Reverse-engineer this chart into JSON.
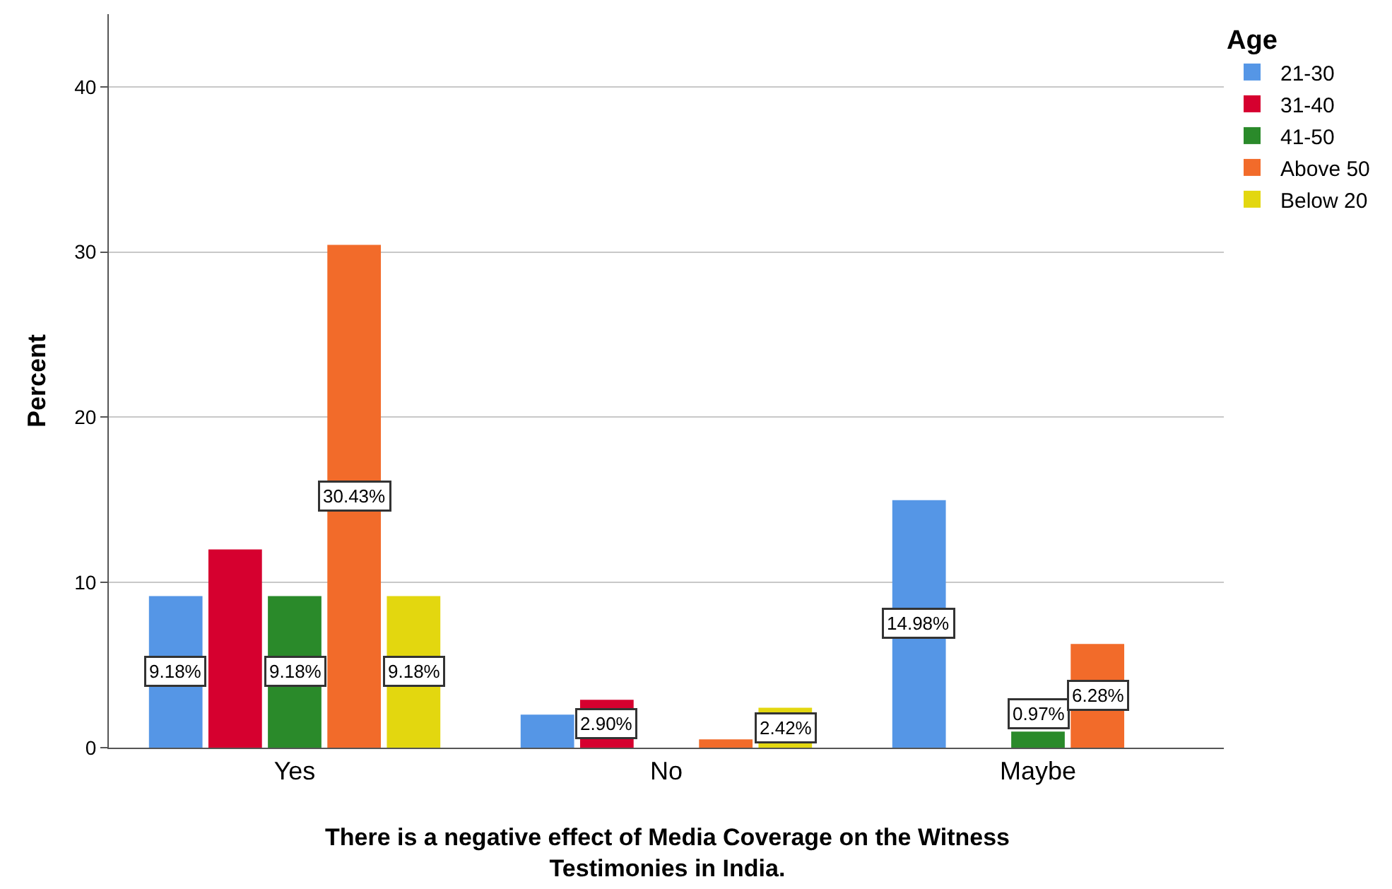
{
  "chart_data": {
    "type": "bar",
    "xlabel": "There is a negative effect of Media Coverage on the Witness Testimonies in India.",
    "ylabel": "Percent",
    "legend_title": "Age",
    "categories": [
      "Yes",
      "No",
      "Maybe"
    ],
    "series": [
      {
        "name": "21-30",
        "color": "#5596e6",
        "values": [
          9.18,
          2.0,
          14.98
        ],
        "value_labels": [
          "9.18%",
          null,
          "14.98%"
        ]
      },
      {
        "name": "31-40",
        "color": "#d6002f",
        "values": [
          12.0,
          2.9,
          null
        ],
        "value_labels": [
          null,
          "2.90%",
          null
        ]
      },
      {
        "name": "41-50",
        "color": "#2a8a2a",
        "values": [
          9.18,
          null,
          0.97
        ],
        "value_labels": [
          "9.18%",
          null,
          "0.97%"
        ]
      },
      {
        "name": "Above 50",
        "color": "#f26b2a",
        "values": [
          30.43,
          0.5,
          6.28
        ],
        "value_labels": [
          "30.43%",
          null,
          "6.28%"
        ]
      },
      {
        "name": "Below 20",
        "color": "#e3d70f",
        "values": [
          9.18,
          2.42,
          null
        ],
        "value_labels": [
          "9.18%",
          "2.42%",
          null
        ]
      }
    ],
    "ylim": [
      0,
      44.4
    ],
    "yticks": [
      0,
      10,
      20,
      30,
      40
    ],
    "grid": "y",
    "legend": "top right"
  }
}
